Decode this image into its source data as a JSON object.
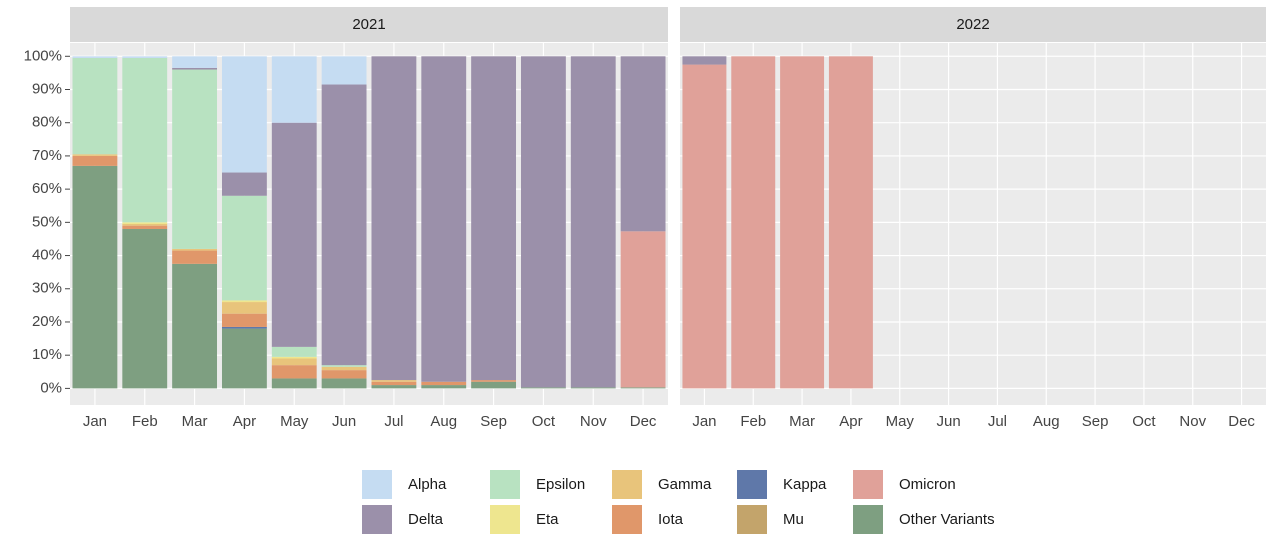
{
  "chart_data": {
    "type": "bar",
    "stacked": true,
    "grid": true,
    "legend": "bottom",
    "ylim": [
      -5,
      104
    ],
    "yticks": [
      {
        "value": 0,
        "label": "0%"
      },
      {
        "value": 10,
        "label": "10%"
      },
      {
        "value": 20,
        "label": "20%"
      },
      {
        "value": 30,
        "label": "30%"
      },
      {
        "value": 40,
        "label": "40%"
      },
      {
        "value": 50,
        "label": "50%"
      },
      {
        "value": 60,
        "label": "60%"
      },
      {
        "value": 70,
        "label": "70%"
      },
      {
        "value": 80,
        "label": "80%"
      },
      {
        "value": 90,
        "label": "90%"
      },
      {
        "value": 100,
        "label": "100%"
      }
    ],
    "panels": [
      {
        "title": "2021",
        "categories": [
          "Jan",
          "Feb",
          "Mar",
          "Apr",
          "May",
          "Jun",
          "Jul",
          "Aug",
          "Sep",
          "Oct",
          "Nov",
          "Dec"
        ]
      },
      {
        "title": "2022",
        "categories": [
          "Jan",
          "Feb",
          "Mar",
          "Apr",
          "May",
          "Jun",
          "Jul",
          "Aug",
          "Sep",
          "Oct",
          "Nov",
          "Dec"
        ]
      }
    ],
    "series": [
      {
        "name": "Alpha",
        "color": "#c5dcf2",
        "values": [
          0.5,
          0.5,
          3.5,
          35,
          20,
          8.5,
          0,
          0,
          0,
          0,
          0,
          0,
          0,
          0,
          0,
          0,
          null,
          null,
          null,
          null,
          null,
          null,
          null,
          null
        ]
      },
      {
        "name": "Delta",
        "color": "#9b90aa",
        "values": [
          0,
          0,
          0.5,
          7,
          67.5,
          84.5,
          97.5,
          98,
          97.5,
          99.7,
          99.7,
          52.7,
          2.5,
          0,
          0,
          0,
          null,
          null,
          null,
          null,
          null,
          null,
          null,
          null
        ]
      },
      {
        "name": "Epsilon",
        "color": "#b8e2c1",
        "values": [
          29,
          49.5,
          54,
          31.5,
          3,
          0.5,
          0,
          0,
          0,
          0,
          0,
          0,
          0,
          0,
          0,
          0,
          null,
          null,
          null,
          null,
          null,
          null,
          null,
          null
        ]
      },
      {
        "name": "Eta",
        "color": "#eee68f",
        "values": [
          0,
          0.5,
          0,
          0.5,
          0.5,
          0,
          0,
          0,
          0,
          0,
          0,
          0,
          0,
          0,
          0,
          0,
          null,
          null,
          null,
          null,
          null,
          null,
          null,
          null
        ]
      },
      {
        "name": "Gamma",
        "color": "#e8c47b",
        "values": [
          0.5,
          0.5,
          0.5,
          3.5,
          2,
          1,
          0.5,
          0,
          0,
          0,
          0,
          0,
          0,
          0,
          0,
          0,
          null,
          null,
          null,
          null,
          null,
          null,
          null,
          null
        ]
      },
      {
        "name": "Iota",
        "color": "#e0976a",
        "values": [
          3,
          1,
          4,
          4,
          4,
          2.5,
          1,
          1,
          0.5,
          0,
          0,
          0,
          0,
          0,
          0,
          0,
          null,
          null,
          null,
          null,
          null,
          null,
          null,
          null
        ]
      },
      {
        "name": "Kappa",
        "color": "#5f78a9",
        "values": [
          0,
          0,
          0,
          0.5,
          0,
          0,
          0,
          0,
          0,
          0,
          0,
          0,
          0,
          0,
          0,
          0,
          null,
          null,
          null,
          null,
          null,
          null,
          null,
          null
        ]
      },
      {
        "name": "Mu",
        "color": "#c3a46b",
        "values": [
          0,
          0,
          0,
          0,
          0,
          0,
          0,
          0,
          0,
          0,
          0,
          0,
          0,
          0,
          0,
          0,
          null,
          null,
          null,
          null,
          null,
          null,
          null,
          null
        ]
      },
      {
        "name": "Omicron",
        "color": "#e0a199",
        "values": [
          0,
          0,
          0,
          0,
          0,
          0,
          0,
          0,
          0,
          0,
          0,
          47,
          97.5,
          100,
          100,
          100,
          null,
          null,
          null,
          null,
          null,
          null,
          null,
          null
        ]
      },
      {
        "name": "Other Variants",
        "color": "#7e9f81",
        "values": [
          67,
          48,
          37.5,
          18,
          3,
          3,
          1,
          1,
          2,
          0.3,
          0.3,
          0.3,
          0,
          0,
          0,
          0,
          null,
          null,
          null,
          null,
          null,
          null,
          null,
          null
        ]
      }
    ]
  }
}
